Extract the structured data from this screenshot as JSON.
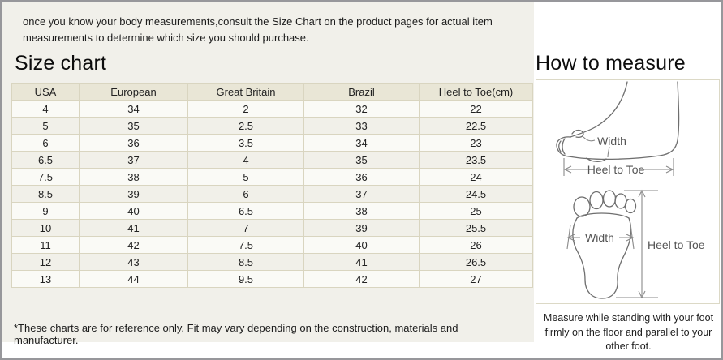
{
  "page": {
    "intro": "once you know your body measurements,consult the Size Chart on the product pages for actual item measurements to determine which size you should purchase.",
    "left_title": "Size chart",
    "right_title": "How to measure",
    "footnote": "*These charts are for reference only. Fit may vary depending on the construction, materials and manufacturer.",
    "measure_note": "Measure while standing with your foot firmly on the floor and parallel to your other foot."
  },
  "size_table": {
    "columns": [
      "USA",
      "European",
      "Great Britain",
      "Brazil",
      "Heel to Toe(cm)"
    ],
    "rows": [
      [
        "4",
        "34",
        "2",
        "32",
        "22"
      ],
      [
        "5",
        "35",
        "2.5",
        "33",
        "22.5"
      ],
      [
        "6",
        "36",
        "3.5",
        "34",
        "23"
      ],
      [
        "6.5",
        "37",
        "4",
        "35",
        "23.5"
      ],
      [
        "7.5",
        "38",
        "5",
        "36",
        "24"
      ],
      [
        "8.5",
        "39",
        "6",
        "37",
        "24.5"
      ],
      [
        "9",
        "40",
        "6.5",
        "38",
        "25"
      ],
      [
        "10",
        "41",
        "7",
        "39",
        "25.5"
      ],
      [
        "11",
        "42",
        "7.5",
        "40",
        "26"
      ],
      [
        "12",
        "43",
        "8.5",
        "41",
        "26.5"
      ],
      [
        "13",
        "44",
        "9.5",
        "42",
        "27"
      ]
    ]
  },
  "diagrams": {
    "side_view": {
      "width_label": "Width",
      "length_label": "Heel to Toe"
    },
    "sole_view": {
      "width_label": "Width",
      "length_label": "Heel to Toe"
    }
  },
  "colors": {
    "panel_bg": "#f1f0ea",
    "table_header_bg": "#e9e6d6",
    "table_border": "#d9d5c0",
    "outer_border": "#97979b",
    "diagram_stroke": "#6e6e6e"
  }
}
